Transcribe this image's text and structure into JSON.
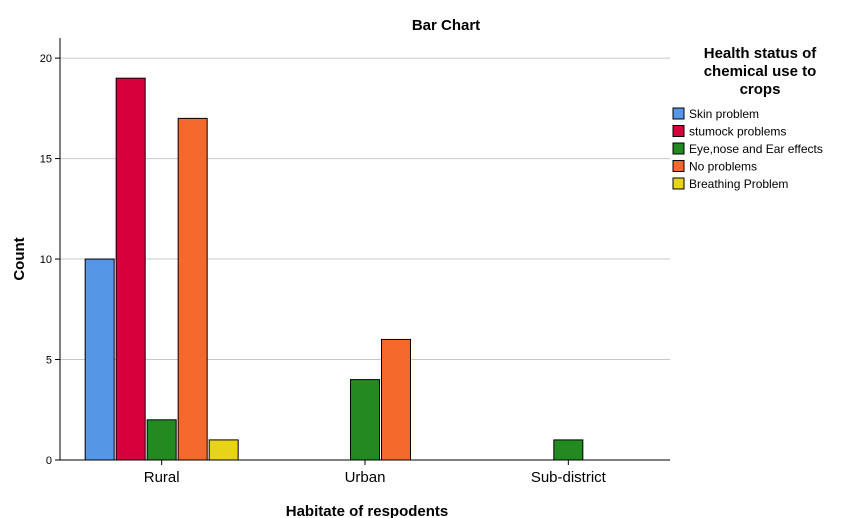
{
  "chart_data": {
    "type": "bar",
    "title": "Bar Chart",
    "xlabel": "Habitate of respodents",
    "ylabel": "Count",
    "categories": [
      "Rural",
      "Urban",
      "Sub-district"
    ],
    "ylim": [
      0,
      21
    ],
    "yticks": [
      0,
      5,
      10,
      15,
      20
    ],
    "grid": true,
    "legend": {
      "title_lines": [
        "Health status of",
        "chemical use to",
        "crops"
      ],
      "placement": "right"
    },
    "series": [
      {
        "name": "Skin problem",
        "color": "#5596e6",
        "values": [
          10,
          0,
          0
        ]
      },
      {
        "name": "stumock problems",
        "color": "#d8003c",
        "values": [
          19,
          0,
          0
        ]
      },
      {
        "name": "Eye,nose and Ear effects",
        "color": "#238a22",
        "values": [
          2,
          4,
          1
        ]
      },
      {
        "name": "No problems",
        "color": "#f6692d",
        "values": [
          17,
          6,
          0
        ]
      },
      {
        "name": "Breathing Problem",
        "color": "#e8d416",
        "values": [
          1,
          0,
          0
        ]
      }
    ]
  }
}
